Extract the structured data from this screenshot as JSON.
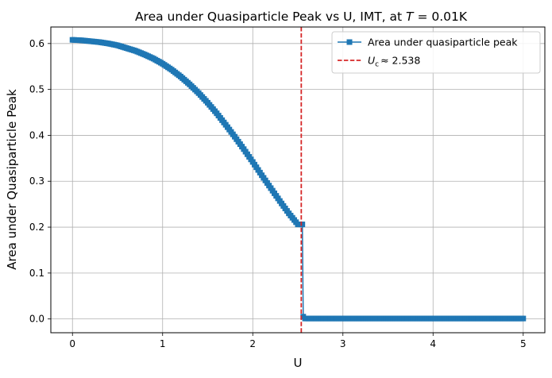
{
  "chart_data": {
    "type": "line",
    "title_pre": "Area under Quasiparticle Peak vs U, IMT, at ",
    "title_var": "T",
    "title_post": " = 0.01K",
    "xlabel": "U",
    "ylabel": "Area under Quasiparticle Peak",
    "xlim": [
      -0.24,
      5.24
    ],
    "ylim": [
      -0.03,
      0.636
    ],
    "xticks": [
      0,
      1,
      2,
      3,
      4,
      5
    ],
    "xtick_labels": [
      "0",
      "1",
      "2",
      "3",
      "4",
      "5"
    ],
    "yticks": [
      0.0,
      0.1,
      0.2,
      0.3,
      0.4,
      0.5,
      0.6
    ],
    "ytick_labels": [
      "0.0",
      "0.1",
      "0.2",
      "0.3",
      "0.4",
      "0.5",
      "0.6"
    ],
    "grid": true,
    "legend_position": "top-right",
    "series": [
      {
        "name": "Area under quasiparticle peak",
        "color": "#1f77b4",
        "marker": "square",
        "x": [
          0.0,
          0.1,
          0.2,
          0.3,
          0.4,
          0.5,
          0.6,
          0.7,
          0.8,
          0.9,
          1.0,
          1.1,
          1.2,
          1.3,
          1.4,
          1.5,
          1.6,
          1.7,
          1.8,
          1.9,
          2.0,
          2.1,
          2.2,
          2.3,
          2.4,
          2.5,
          2.55,
          2.56,
          2.6,
          3.0,
          3.5,
          4.0,
          4.5,
          5.0
        ],
        "y": [
          0.608,
          0.607,
          0.605,
          0.603,
          0.6,
          0.596,
          0.59,
          0.584,
          0.576,
          0.567,
          0.556,
          0.543,
          0.528,
          0.511,
          0.492,
          0.471,
          0.448,
          0.423,
          0.397,
          0.37,
          0.342,
          0.313,
          0.285,
          0.257,
          0.23,
          0.206,
          0.206,
          0.005,
          0.001,
          0.001,
          0.001,
          0.001,
          0.001,
          0.001
        ]
      }
    ],
    "critical": {
      "x": 2.538,
      "color": "#d62728",
      "label_sym": "U",
      "label_sub": "c",
      "label_rest": "≈ 2.538"
    }
  }
}
